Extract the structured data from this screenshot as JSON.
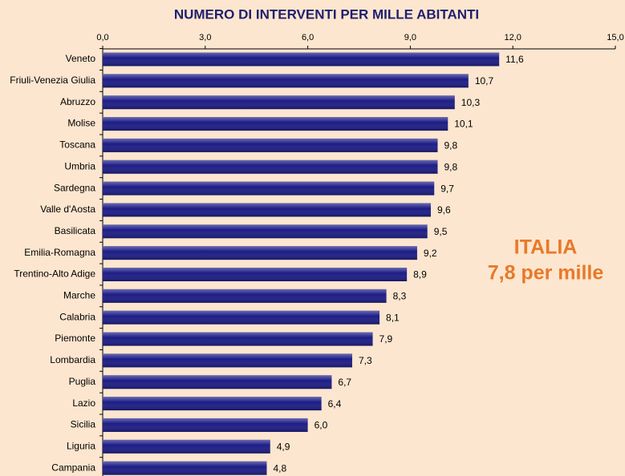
{
  "chart_data": {
    "type": "bar",
    "orientation": "horizontal",
    "title": "NUMERO DI INTERVENTI PER MILLE ABITANTI",
    "categories": [
      "Veneto",
      "Friuli-Venezia Giulia",
      "Abruzzo",
      "Molise",
      "Toscana",
      "Umbria",
      "Sardegna",
      "Valle d'Aosta",
      "Basilicata",
      "Emilia-Romagna",
      "Trentino-Alto Adige",
      "Marche",
      "Calabria",
      "Piemonte",
      "Lombardia",
      "Puglia",
      "Lazio",
      "Sicilia",
      "Liguria",
      "Campania"
    ],
    "values": [
      11.6,
      10.7,
      10.3,
      10.1,
      9.8,
      9.8,
      9.7,
      9.6,
      9.5,
      9.2,
      8.9,
      8.3,
      8.1,
      7.9,
      7.3,
      6.7,
      6.4,
      6.0,
      4.9,
      4.8
    ],
    "value_labels": [
      "11,6",
      "10,7",
      "10,3",
      "10,1",
      "9,8",
      "9,8",
      "9,7",
      "9,6",
      "9,5",
      "9,2",
      "8,9",
      "8,3",
      "8,1",
      "7,9",
      "7,3",
      "6,7",
      "6,4",
      "6,0",
      "4,9",
      "4,8"
    ],
    "color": "#1c1c86",
    "xlim": [
      0,
      15
    ],
    "xticks": [
      {
        "value": 0,
        "label": "0,0"
      },
      {
        "value": 3,
        "label": "3,0"
      },
      {
        "value": 6,
        "label": "6,0"
      },
      {
        "value": 9,
        "label": "9,0"
      },
      {
        "value": 12,
        "label": "12,0"
      },
      {
        "value": 15,
        "label": "15,0"
      }
    ],
    "annotations": [
      "ITALIA",
      "7,8 per mille"
    ]
  }
}
